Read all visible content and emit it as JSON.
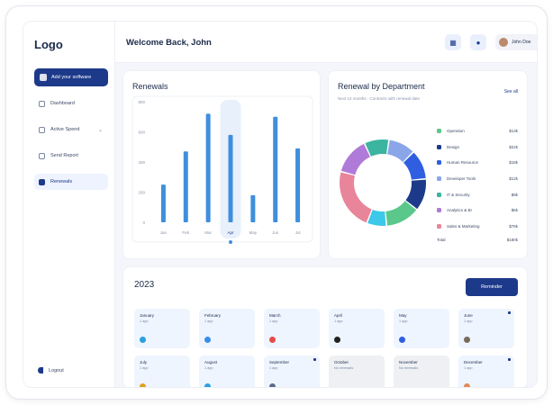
{
  "sidebar": {
    "logo": "Logo",
    "add_button": "Add your software",
    "items": [
      {
        "label": "Dashboard",
        "icon": "grid-icon"
      },
      {
        "label": "Active Spend",
        "icon": "wallet-icon"
      },
      {
        "label": "Send Report",
        "icon": "report-icon"
      },
      {
        "label": "Renewals",
        "icon": "renew-icon"
      }
    ],
    "logout": "Logout"
  },
  "header": {
    "welcome": "Welcome Back, John",
    "user_name": "John Doe"
  },
  "renewals": {
    "title": "Renewals"
  },
  "chart_data": {
    "type": "bar",
    "categories": [
      "Jan",
      "Feb",
      "Mar",
      "Apr",
      "May",
      "Jun",
      "Jul"
    ],
    "values": [
      250,
      470,
      720,
      580,
      180,
      700,
      490
    ],
    "yticks": [
      0,
      200,
      400,
      600,
      800
    ],
    "ylim": [
      0,
      800
    ],
    "highlight_index": 3,
    "bar_color": "#3f8fdc",
    "highlight_bg": "#e7f0fb"
  },
  "department": {
    "title": "Renewal by Department",
    "subtitle": "Next 12 months - Contracts with renewal date",
    "see_all": "See all",
    "segments": [
      {
        "label": "Operation",
        "value": "$13k",
        "color": "#5ac88a",
        "share": 14
      },
      {
        "label": "Design",
        "value": "$22k",
        "color": "#1d3a8a",
        "share": 13
      },
      {
        "label": "Human Resource",
        "value": "$18k",
        "color": "#2f5fe0",
        "share": 12
      },
      {
        "label": "Developer Tools",
        "value": "$12k",
        "color": "#8aa6e8",
        "share": 11
      },
      {
        "label": "IT & Security",
        "value": "$9k",
        "color": "#3bb4a0",
        "share": 10
      },
      {
        "label": "Analytics & BI",
        "value": "$6k",
        "color": "#b07ad8",
        "share": 15
      },
      {
        "label": "Sales & Marketing",
        "value": "$78k",
        "color": "#e8859a",
        "share": 25
      }
    ],
    "ring_order": [
      6,
      5,
      4,
      3,
      2,
      1,
      0
    ],
    "cyan_segment": {
      "color": "#3cc8e8",
      "share": 8
    },
    "total_label": "Total",
    "total_value": "$180k"
  },
  "year": {
    "title": "2023",
    "reminder_button": "Reminder",
    "months": [
      {
        "name": "January",
        "sub": "1 app",
        "icon_color": "#2aa0e0",
        "grey": false,
        "flag": false
      },
      {
        "name": "February",
        "sub": "1 app",
        "icon_color": "#3b8de8",
        "grey": false,
        "flag": false
      },
      {
        "name": "March",
        "sub": "1 app",
        "icon_color": "#e84a4a",
        "grey": false,
        "flag": false
      },
      {
        "name": "April",
        "sub": "1 app",
        "icon_color": "#222222",
        "grey": false,
        "flag": false
      },
      {
        "name": "May",
        "sub": "1 app",
        "icon_color": "#2f5fe0",
        "grey": false,
        "flag": false
      },
      {
        "name": "June",
        "sub": "1 app",
        "icon_color": "#7a6a5a",
        "grey": false,
        "flag": true
      },
      {
        "name": "July",
        "sub": "1 app",
        "icon_color": "#e0a020",
        "grey": false,
        "flag": false
      },
      {
        "name": "August",
        "sub": "1 app",
        "icon_color": "#2aa0e0",
        "grey": false,
        "flag": false
      },
      {
        "name": "September",
        "sub": "1 app",
        "icon_color": "#5a6a8a",
        "grey": false,
        "flag": true
      },
      {
        "name": "October",
        "sub": "No renewals",
        "icon_color": "",
        "grey": true,
        "flag": false
      },
      {
        "name": "November",
        "sub": "No renewals",
        "icon_color": "",
        "grey": true,
        "flag": false
      },
      {
        "name": "December",
        "sub": "1 app",
        "icon_color": "#e08a5a",
        "grey": false,
        "flag": true
      }
    ]
  }
}
